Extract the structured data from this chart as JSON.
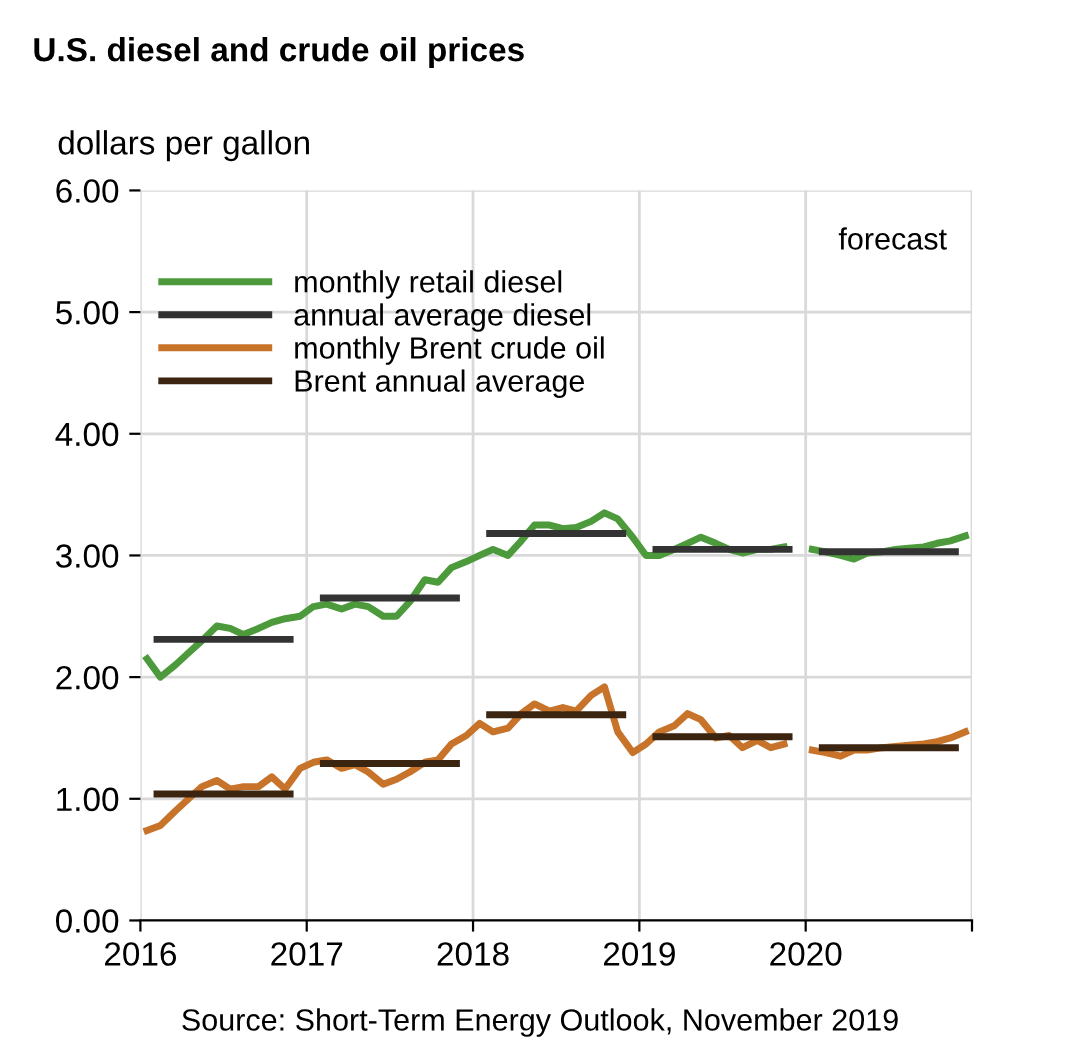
{
  "chart_data": {
    "type": "line",
    "title": "U.S. diesel and crude oil prices",
    "ylabel": "dollars per gallon",
    "annotations": [
      "forecast",
      "Source: Short-Term Energy Outlook, November 2019"
    ],
    "xlim": [
      2016,
      2021
    ],
    "xticks": [
      2016,
      2017,
      2018,
      2019,
      2020,
      {
        "value": 2021,
        "label": null
      }
    ],
    "ylim": [
      0,
      6
    ],
    "yticks": [
      {
        "value": 0,
        "label": "0.00"
      },
      {
        "value": 1,
        "label": "1.00"
      },
      {
        "value": 2,
        "label": "2.00"
      },
      {
        "value": 3,
        "label": "3.00"
      },
      {
        "value": 4,
        "label": "4.00"
      },
      {
        "value": 5,
        "label": "5.00"
      },
      {
        "value": 6,
        "label": "6.00"
      }
    ],
    "grid": true,
    "legend": "top left",
    "marker": "none",
    "line_style": "solid",
    "series": [
      {
        "name": "monthly retail diesel",
        "color": "#4c9a3c",
        "x": [
          2016.04,
          2016.12,
          2016.21,
          2016.29,
          2016.37,
          2016.46,
          2016.54,
          2016.62,
          2016.71,
          2016.79,
          2016.87,
          2016.96,
          2017.04,
          2017.12,
          2017.21,
          2017.29,
          2017.37,
          2017.46,
          2017.54,
          2017.62,
          2017.71,
          2017.79,
          2017.87,
          2017.96,
          2018.04,
          2018.12,
          2018.21,
          2018.29,
          2018.37,
          2018.46,
          2018.54,
          2018.62,
          2018.71,
          2018.79,
          2018.87,
          2018.96,
          2019.04,
          2019.12,
          2019.21,
          2019.29,
          2019.37,
          2019.46,
          2019.54,
          2019.62,
          2019.71,
          2019.79,
          2019.87,
          2019.96,
          2020.04,
          2020.12,
          2020.21,
          2020.29,
          2020.37,
          2020.46,
          2020.54,
          2020.62,
          2020.71,
          2020.79,
          2020.87,
          2020.96
        ],
        "values": [
          2.15,
          2.0,
          2.1,
          2.2,
          2.3,
          2.42,
          2.4,
          2.35,
          2.4,
          2.45,
          2.48,
          2.5,
          2.58,
          2.6,
          2.56,
          2.6,
          2.58,
          2.5,
          2.5,
          2.62,
          2.8,
          2.78,
          2.9,
          2.95,
          3.0,
          3.05,
          3.0,
          3.12,
          3.25,
          3.25,
          3.22,
          3.23,
          3.28,
          3.35,
          3.3,
          3.15,
          3.0,
          3.0,
          3.05,
          3.1,
          3.15,
          3.1,
          3.05,
          3.02,
          3.05,
          3.05,
          3.07,
          null,
          3.05,
          3.03,
          3.0,
          2.97,
          3.02,
          3.03,
          3.05,
          3.06,
          3.07,
          3.1,
          3.12,
          3.16
        ]
      },
      {
        "name": "annual average diesel",
        "color": "#333333",
        "x": [
          2016.1,
          2016.9,
          2016.95,
          2017.1,
          2017.9,
          2017.95,
          2018.1,
          2018.9,
          2018.95,
          2019.1,
          2019.9,
          2019.95,
          2020.1,
          2020.9
        ],
        "values": [
          2.31,
          2.31,
          null,
          2.65,
          2.65,
          null,
          3.18,
          3.18,
          null,
          3.05,
          3.05,
          null,
          3.03,
          3.03
        ]
      },
      {
        "name": "monthly Brent crude oil",
        "color": "#c8732a",
        "x": [
          2016.04,
          2016.12,
          2016.21,
          2016.29,
          2016.37,
          2016.46,
          2016.54,
          2016.62,
          2016.71,
          2016.79,
          2016.87,
          2016.96,
          2017.04,
          2017.12,
          2017.21,
          2017.29,
          2017.37,
          2017.46,
          2017.54,
          2017.62,
          2017.71,
          2017.79,
          2017.87,
          2017.96,
          2018.04,
          2018.12,
          2018.21,
          2018.29,
          2018.37,
          2018.46,
          2018.54,
          2018.62,
          2018.71,
          2018.79,
          2018.87,
          2018.96,
          2019.04,
          2019.12,
          2019.21,
          2019.29,
          2019.37,
          2019.46,
          2019.54,
          2019.62,
          2019.71,
          2019.79,
          2019.87,
          2019.96,
          2020.04,
          2020.12,
          2020.21,
          2020.29,
          2020.37,
          2020.46,
          2020.54,
          2020.62,
          2020.71,
          2020.79,
          2020.87,
          2020.96
        ],
        "values": [
          0.74,
          0.78,
          0.9,
          1.0,
          1.1,
          1.15,
          1.08,
          1.1,
          1.1,
          1.18,
          1.08,
          1.25,
          1.3,
          1.32,
          1.25,
          1.28,
          1.22,
          1.12,
          1.16,
          1.22,
          1.3,
          1.32,
          1.45,
          1.52,
          1.62,
          1.55,
          1.58,
          1.7,
          1.78,
          1.72,
          1.75,
          1.72,
          1.85,
          1.92,
          1.55,
          1.38,
          1.45,
          1.55,
          1.6,
          1.7,
          1.65,
          1.5,
          1.52,
          1.42,
          1.48,
          1.42,
          1.45,
          null,
          1.4,
          1.38,
          1.35,
          1.4,
          1.4,
          1.42,
          1.43,
          1.44,
          1.45,
          1.47,
          1.5,
          1.55
        ]
      },
      {
        "name": "Brent annual average",
        "color": "#3b2410",
        "x": [
          2016.1,
          2016.9,
          2016.95,
          2017.1,
          2017.9,
          2017.95,
          2018.1,
          2018.9,
          2018.95,
          2019.1,
          2019.9,
          2019.95,
          2020.1,
          2020.9
        ],
        "values": [
          1.04,
          1.04,
          null,
          1.29,
          1.29,
          null,
          1.69,
          1.69,
          null,
          1.51,
          1.51,
          null,
          1.42,
          1.42
        ]
      }
    ]
  }
}
